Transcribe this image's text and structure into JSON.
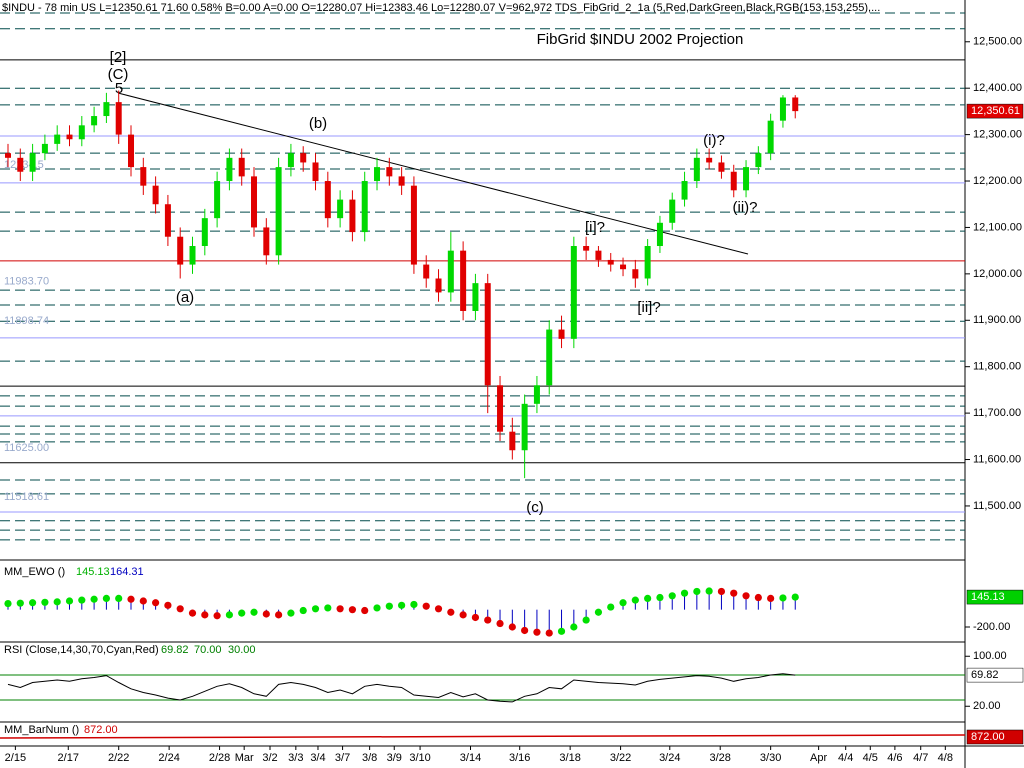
{
  "header": "$INDU - 78 min  US  L=12350.61  71.60  0.58%  B=0.00  A=0.00  O=12280.07  Hi=12383.46  Lo=12280.07  V=962,972  TDS_FibGrid_2_1a (5,Red,DarkGreen,Black,RGB(153,153,255),...",
  "chart_data": [
    {
      "type": "candlestick",
      "title": "FibGrid $INDU 2002 Projection",
      "up_color": "#00d800",
      "down_color": "#e00000",
      "open": [
        12260,
        12250,
        12220,
        12260,
        12280,
        12300,
        12290,
        12320,
        12340,
        12370,
        12300,
        12230,
        12190,
        12150,
        12080,
        12020,
        12060,
        12120,
        12200,
        12250,
        12210,
        12100,
        12040,
        12230,
        12260,
        12240,
        12200,
        12120,
        12160,
        12090,
        12200,
        12230,
        12210,
        12190,
        12020,
        11990,
        11960,
        12050,
        11920,
        11980,
        11760,
        11660,
        11620,
        11720,
        11760,
        11880,
        11860,
        12060,
        12050,
        12030,
        12020,
        12010,
        11990,
        12060,
        12110,
        12160,
        12200,
        12250,
        12240,
        12220,
        12180,
        12230,
        12260,
        12330,
        12380
      ],
      "high": [
        12280,
        12270,
        12280,
        12300,
        12320,
        12320,
        12340,
        12360,
        12390,
        12395,
        12320,
        12250,
        12210,
        12170,
        12100,
        12080,
        12140,
        12220,
        12270,
        12270,
        12230,
        12120,
        12250,
        12280,
        12275,
        12260,
        12220,
        12180,
        12180,
        12220,
        12250,
        12250,
        12230,
        12210,
        12040,
        12010,
        12090,
        12070,
        12000,
        12000,
        11780,
        11690,
        11740,
        11780,
        11900,
        11910,
        12080,
        12080,
        12060,
        12045,
        12035,
        12030,
        12075,
        12125,
        12175,
        12220,
        12270,
        12270,
        12255,
        12235,
        12245,
        12275,
        12345,
        12385,
        12385
      ],
      "low": [
        12230,
        12200,
        12200,
        12245,
        12265,
        12275,
        12275,
        12305,
        12325,
        12280,
        12210,
        12170,
        12130,
        12060,
        11990,
        12000,
        12040,
        12100,
        12180,
        12190,
        12080,
        12020,
        12020,
        12210,
        12220,
        12180,
        12100,
        12100,
        12070,
        12070,
        12180,
        12190,
        12170,
        12000,
        11970,
        11940,
        11940,
        11900,
        11900,
        11700,
        11640,
        11600,
        11560,
        11700,
        11740,
        11840,
        11840,
        12030,
        12015,
        12005,
        11995,
        11970,
        11975,
        12045,
        12095,
        12145,
        12185,
        12225,
        12205,
        12165,
        12165,
        12215,
        12245,
        12315,
        12335
      ],
      "close": [
        12250,
        12220,
        12260,
        12280,
        12300,
        12290,
        12320,
        12340,
        12370,
        12300,
        12230,
        12190,
        12150,
        12080,
        12020,
        12060,
        12120,
        12200,
        12250,
        12210,
        12100,
        12040,
        12230,
        12260,
        12240,
        12200,
        12120,
        12160,
        12090,
        12200,
        12230,
        12210,
        12190,
        12020,
        11990,
        11960,
        12050,
        11920,
        11980,
        11760,
        11660,
        11620,
        11720,
        11760,
        11880,
        11860,
        12060,
        12050,
        12030,
        12020,
        12010,
        11990,
        12060,
        12110,
        12160,
        12200,
        12250,
        12240,
        12220,
        12180,
        12230,
        12260,
        12330,
        12380,
        12350.61
      ],
      "last_price": {
        "value": 12350.61,
        "label": "12,350.61"
      },
      "xlim": [
        -0.65,
        77.8
      ],
      "xticks": [
        {
          "value": 0.6,
          "label": "2/15"
        },
        {
          "value": 4.9,
          "label": "2/17"
        },
        {
          "value": 9,
          "label": "2/22"
        },
        {
          "value": 13.1,
          "label": "2/24"
        },
        {
          "value": 17.2,
          "label": "2/28"
        },
        {
          "value": 19.2,
          "label": "Mar"
        },
        {
          "value": 21.3,
          "label": "3/2"
        },
        {
          "value": 23.4,
          "label": "3/3"
        },
        {
          "value": 25.2,
          "label": "3/4"
        },
        {
          "value": 27.2,
          "label": "3/7"
        },
        {
          "value": 29.4,
          "label": "3/8"
        },
        {
          "value": 31.4,
          "label": "3/9"
        },
        {
          "value": 33.5,
          "label": "3/10"
        },
        {
          "value": 37.6,
          "label": "3/14"
        },
        {
          "value": 41.6,
          "label": "3/16"
        },
        {
          "value": 45.7,
          "label": "3/18"
        },
        {
          "value": 49.8,
          "label": "3/22"
        },
        {
          "value": 53.8,
          "label": "3/24"
        },
        {
          "value": 57.9,
          "label": "3/28"
        },
        {
          "value": 62,
          "label": "3/30"
        },
        {
          "value": 65.9,
          "label": "Apr"
        },
        {
          "value": 68.1,
          "label": "4/4"
        },
        {
          "value": 70.1,
          "label": "4/5"
        },
        {
          "value": 72.1,
          "label": "4/6"
        },
        {
          "value": 74.2,
          "label": "4/7"
        },
        {
          "value": 76.2,
          "label": "4/8"
        }
      ],
      "ylim": [
        11390,
        12590
      ],
      "yticks": [
        {
          "value": 12500,
          "label": "12,500.00"
        },
        {
          "value": 12400,
          "label": "12,400.00"
        },
        {
          "value": 12300,
          "label": "12,300.00"
        },
        {
          "value": 12200,
          "label": "12,200.00"
        },
        {
          "value": 12100,
          "label": "12,100.00"
        },
        {
          "value": 12000,
          "label": "12,000.00"
        },
        {
          "value": 11900,
          "label": "11,900.00"
        },
        {
          "value": 11800,
          "label": "11,800.00"
        },
        {
          "value": 11700,
          "label": "11,700.00"
        },
        {
          "value": 11600,
          "label": "11,600.00"
        },
        {
          "value": 11500,
          "label": "11,500.00"
        }
      ],
      "dashed_levels": [
        12562,
        12528,
        12400,
        12364,
        12260,
        12226,
        12133,
        12092,
        11965,
        11933,
        11898,
        11812,
        11737,
        11715,
        11672,
        11655,
        11638,
        11556,
        11526,
        11468,
        11448,
        11427
      ],
      "dashed_color": "#004a4a",
      "solid_levels": [
        12461,
        11758,
        11593
      ],
      "solid_color": "#000000",
      "blue_levels": [
        12297,
        12196,
        11862,
        11694,
        11487
      ],
      "blue_color": "#9999ff",
      "red_levels": [
        12028
      ],
      "red_color": "#d00000",
      "level_labels": [
        {
          "value": 12234.5,
          "label": "12234.5"
        },
        {
          "value": 11983.7,
          "label": "11983.70"
        },
        {
          "value": 11898.74,
          "label": "11898.74"
        },
        {
          "value": 11625,
          "label": "11625.00"
        },
        {
          "value": 11518.61,
          "label": "11518.61"
        }
      ],
      "annotations": [
        "[2]",
        "(C)",
        "5",
        "(a)",
        "(b)",
        "(c)",
        "[i]?",
        "[ii]?",
        "(i)?",
        "(ii)?"
      ]
    },
    {
      "type": "ewo",
      "name": "MM_EWO ()",
      "values": [
        70,
        75,
        80,
        85,
        90,
        100,
        110,
        120,
        130,
        130,
        120,
        100,
        80,
        50,
        10,
        -40,
        -60,
        -70,
        -60,
        -40,
        -30,
        -50,
        -60,
        -40,
        -10,
        10,
        20,
        10,
        0,
        -10,
        20,
        40,
        50,
        60,
        40,
        10,
        -30,
        -60,
        -90,
        -120,
        -160,
        -200,
        -240,
        -260,
        -270,
        -250,
        -200,
        -120,
        -30,
        30,
        80,
        110,
        130,
        140,
        160,
        190,
        210,
        215,
        210,
        190,
        160,
        140,
        130,
        135,
        145.13
      ],
      "signal": 164.31,
      "up_color": "#00e000",
      "down_color": "#e00000",
      "hist_color": "#0000c0",
      "ylim": [
        -350,
        550
      ],
      "yticks": [
        {
          "value": -200,
          "label": "-200.00"
        }
      ]
    },
    {
      "type": "rsi",
      "name": "RSI (Close,14,30,70,Cyan,Red)",
      "values": [
        55,
        50,
        58,
        60,
        62,
        60,
        64,
        66,
        69,
        58,
        48,
        42,
        38,
        33,
        30,
        36,
        44,
        52,
        56,
        50,
        40,
        36,
        55,
        58,
        55,
        50,
        42,
        46,
        40,
        52,
        55,
        52,
        50,
        38,
        36,
        34,
        42,
        35,
        40,
        30,
        28,
        27,
        36,
        40,
        50,
        48,
        62,
        60,
        58,
        57,
        56,
        54,
        60,
        63,
        65,
        67,
        69,
        68,
        65,
        60,
        64,
        66,
        70,
        72,
        69.82
      ],
      "levels": [
        70,
        30
      ],
      "level_labels": [
        "70.00",
        "30.00"
      ],
      "ylim": [
        -2,
        118
      ],
      "yticks": [
        {
          "value": 100,
          "label": "100.00"
        },
        {
          "value": 20,
          "label": "20.00"
        }
      ]
    },
    {
      "type": "barnum",
      "name": "MM_BarNum ()",
      "values": [
        872
      ],
      "value_labels": [
        "872.00"
      ],
      "color": "#d00000"
    }
  ]
}
